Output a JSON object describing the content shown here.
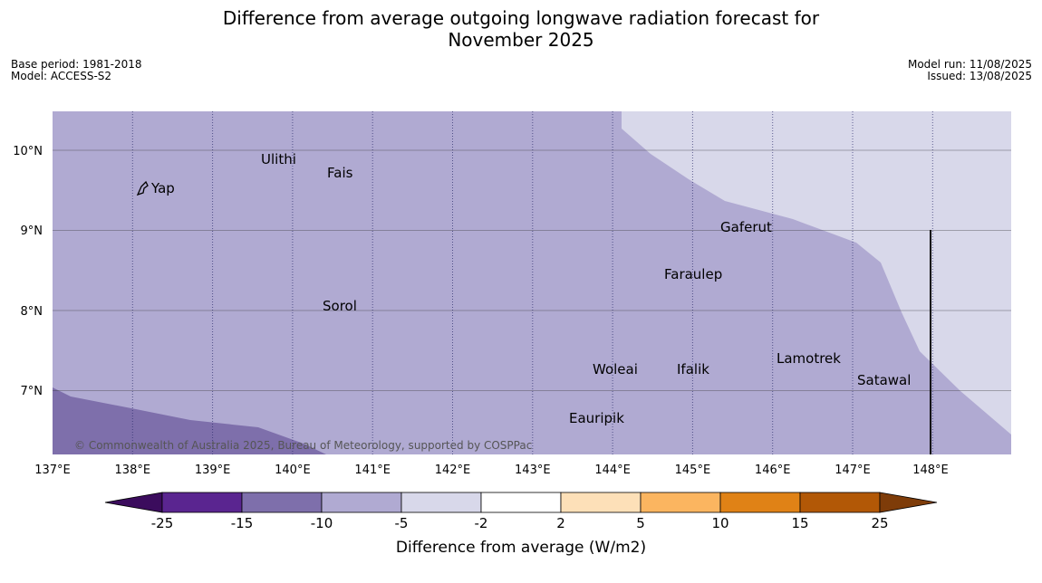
{
  "header": {
    "title_line1": "Difference from average outgoing longwave radiation forecast for",
    "title_line2": "November 2025",
    "base_period": "Base period: 1981-2018",
    "model": "Model: ACCESS-S2",
    "model_run": "Model run: 11/08/2025",
    "issued": "Issued: 13/08/2025"
  },
  "map": {
    "lon_ticks": [
      "137°E",
      "138°E",
      "139°E",
      "140°E",
      "141°E",
      "142°E",
      "143°E",
      "144°E",
      "145°E",
      "146°E",
      "147°E",
      "148°E"
    ],
    "lat_ticks": [
      "10°N",
      "9°N",
      "8°N",
      "7°N"
    ],
    "places": [
      {
        "name": "Yap"
      },
      {
        "name": "Ulithi"
      },
      {
        "name": "Fais"
      },
      {
        "name": "Gaferut"
      },
      {
        "name": "Faraulep"
      },
      {
        "name": "Sorol"
      },
      {
        "name": "Lamotrek"
      },
      {
        "name": "Woleai"
      },
      {
        "name": "Ifalik"
      },
      {
        "name": "Satawal"
      },
      {
        "name": "Eauripik"
      }
    ],
    "copyright": "© Commonwealth of Australia 2025, Bureau of Meteorology, supported by COSPPac",
    "colors": {
      "band_-15_-10": "#7e6fab",
      "band_-10_-5": "#b0aad2",
      "band_-5_-2": "#d8d8ea"
    }
  },
  "colorbar": {
    "label": "Difference from average (W/m2)",
    "ticks": [
      "-25",
      "-15",
      "-10",
      "-5",
      "-2",
      "2",
      "5",
      "10",
      "15",
      "25"
    ],
    "colors": [
      "#3b0c5d",
      "#5a2590",
      "#7e6fab",
      "#b0aad2",
      "#d8d8ea",
      "#ffffff",
      "#fde0b8",
      "#fbb560",
      "#e08216",
      "#b25806",
      "#7e3c09"
    ]
  }
}
